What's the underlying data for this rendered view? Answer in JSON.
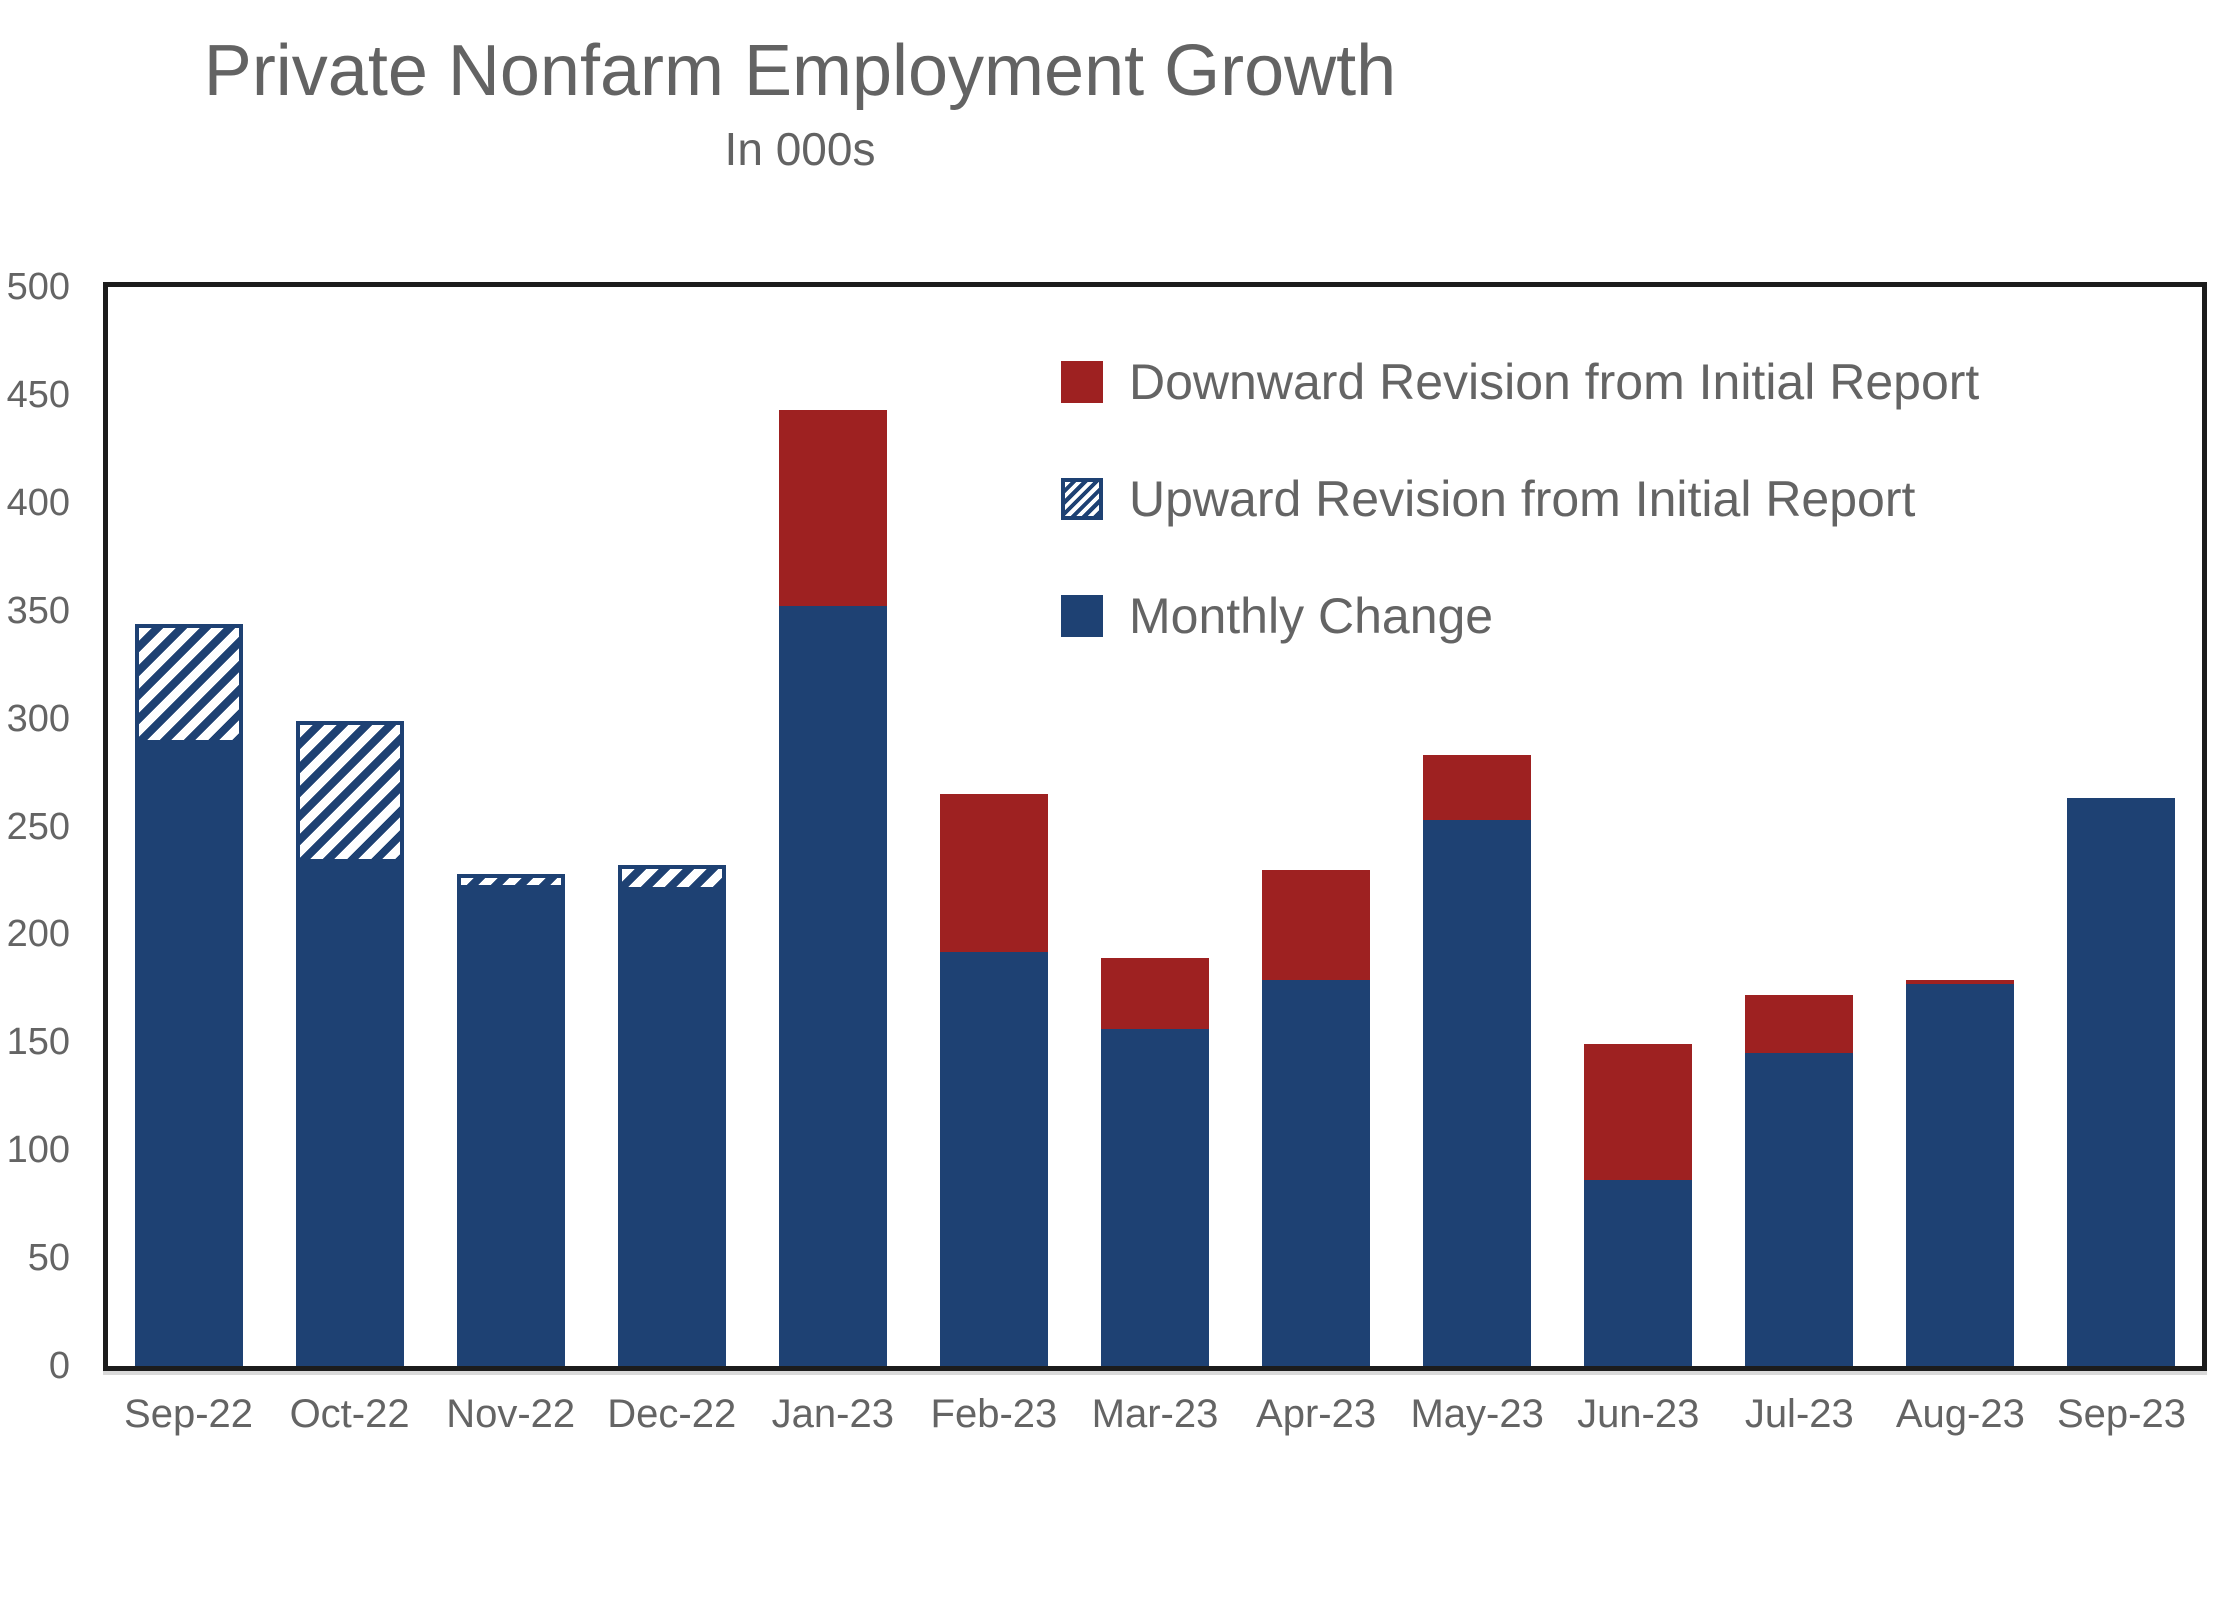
{
  "chart_data": {
    "type": "bar",
    "stacked": true,
    "title": "Private Nonfarm Employment Growth",
    "subtitle": "In 000s",
    "ylim": [
      0,
      500
    ],
    "ytick_step": 50,
    "ytick_labels": [
      "0",
      "50",
      "100",
      "150",
      "200",
      "250",
      "300",
      "350",
      "400",
      "450",
      "500"
    ],
    "grid": false,
    "legend_position": "inside-top-right",
    "legend": [
      {
        "label": "Downward Revision from Initial Report",
        "swatch": "solid-red"
      },
      {
        "label": "Upward Revision from Initial Report",
        "swatch": "hatched-blue"
      },
      {
        "label": "Monthly Change",
        "swatch": "solid-blue"
      }
    ],
    "colors": {
      "monthly_change_blue": "#1e4173",
      "downward_revision_red": "#9e2121",
      "axis_frame": "#1c1c1c",
      "text_gray": "#646464"
    },
    "categories": [
      "Sep-22",
      "Oct-22",
      "Nov-22",
      "Dec-22",
      "Jan-23",
      "Feb-23",
      "Mar-23",
      "Apr-23",
      "May-23",
      "Jun-23",
      "Jul-23",
      "Aug-23",
      "Sep-23"
    ],
    "months": [
      {
        "label": "Sep-22",
        "monthly_change": 288,
        "revision": "up",
        "revision_amount": 56,
        "bar_total": 344
      },
      {
        "label": "Oct-22",
        "monthly_change": 233,
        "revision": "up",
        "revision_amount": 66,
        "bar_total": 299
      },
      {
        "label": "Nov-22",
        "monthly_change": 221,
        "revision": "up",
        "revision_amount": 7,
        "bar_total": 228
      },
      {
        "label": "Dec-22",
        "monthly_change": 220,
        "revision": "up",
        "revision_amount": 12,
        "bar_total": 232
      },
      {
        "label": "Jan-23",
        "monthly_change": 352,
        "revision": "down",
        "revision_amount": 91,
        "bar_total": 443
      },
      {
        "label": "Feb-23",
        "monthly_change": 192,
        "revision": "down",
        "revision_amount": 73,
        "bar_total": 265
      },
      {
        "label": "Mar-23",
        "monthly_change": 156,
        "revision": "down",
        "revision_amount": 33,
        "bar_total": 189
      },
      {
        "label": "Apr-23",
        "monthly_change": 179,
        "revision": "down",
        "revision_amount": 51,
        "bar_total": 230
      },
      {
        "label": "May-23",
        "monthly_change": 253,
        "revision": "down",
        "revision_amount": 30,
        "bar_total": 283
      },
      {
        "label": "Jun-23",
        "monthly_change": 86,
        "revision": "down",
        "revision_amount": 63,
        "bar_total": 149
      },
      {
        "label": "Jul-23",
        "monthly_change": 145,
        "revision": "down",
        "revision_amount": 27,
        "bar_total": 172
      },
      {
        "label": "Aug-23",
        "monthly_change": 177,
        "revision": "down",
        "revision_amount": 2,
        "bar_total": 179
      },
      {
        "label": "Sep-23",
        "monthly_change": 263,
        "revision": "none",
        "revision_amount": 0,
        "bar_total": 263
      }
    ]
  }
}
